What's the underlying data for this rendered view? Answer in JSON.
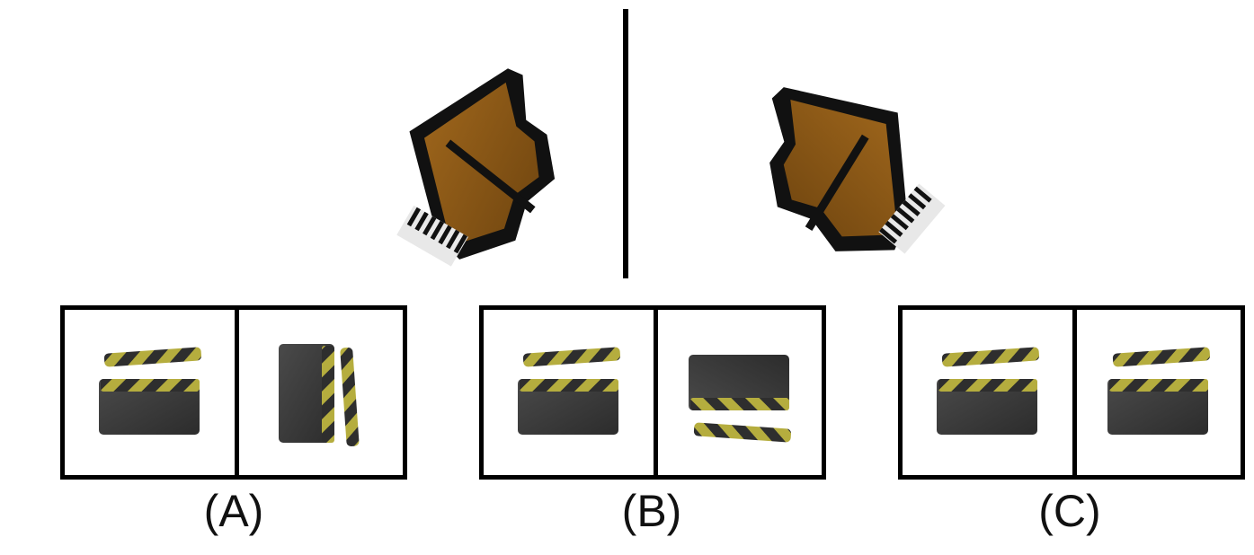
{
  "reference": {
    "left_object": "grand-piano",
    "right_object": "grand-piano-mirrored"
  },
  "options": [
    {
      "label": "(A)",
      "left_icon": "clapperboard-icon",
      "right_icon": "clapperboard-rotated-icon"
    },
    {
      "label": "(B)",
      "left_icon": "clapperboard-icon",
      "right_icon": "clapperboard-flipped-icon"
    },
    {
      "label": "(C)",
      "left_icon": "clapperboard-icon",
      "right_icon": "clapperboard-icon"
    }
  ],
  "colors": {
    "stripe_yellow": "#b5ad3e",
    "board_dark": "#3a3a3a",
    "piano_wood": "#8a5a1a"
  }
}
